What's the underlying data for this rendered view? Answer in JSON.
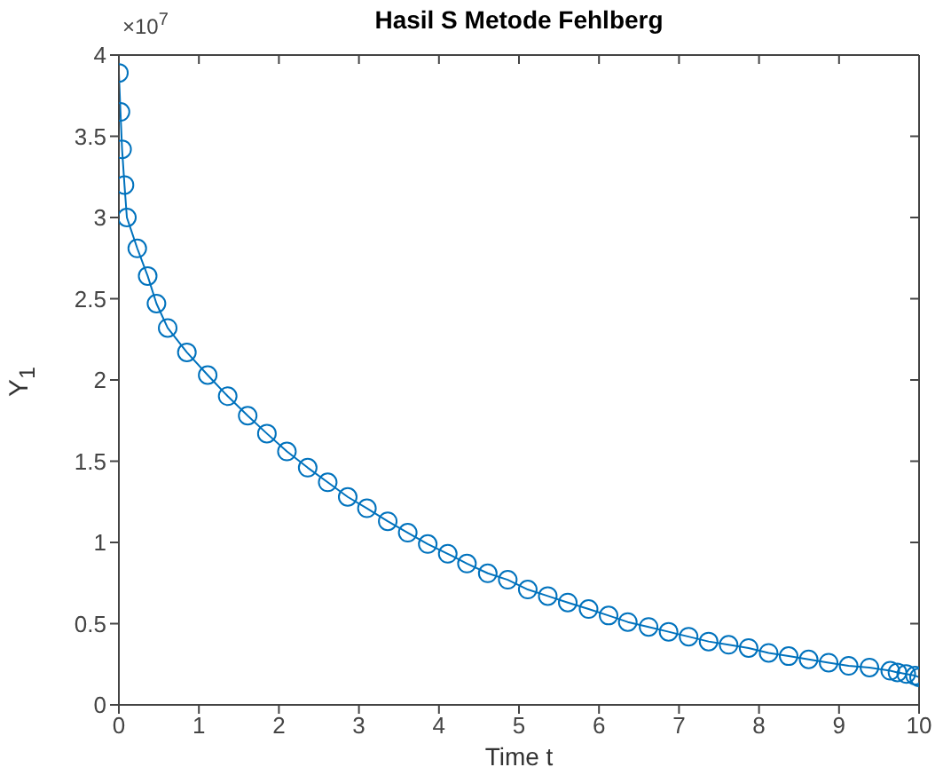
{
  "chart_data": {
    "type": "line",
    "title": "Hasil S Metode Fehlberg",
    "xlabel": "Time t",
    "ylabel": "Y$_{1}$",
    "annotations": [
      "×10$^{7}$"
    ],
    "series": [
      {
        "color": "#0072bd",
        "x": [
          0,
          0.02,
          0.04,
          0.07,
          0.1,
          0.23,
          0.36,
          0.47,
          0.61,
          0.85,
          1.11,
          1.36,
          1.61,
          1.85,
          2.1,
          2.36,
          2.61,
          2.86,
          3.1,
          3.36,
          3.61,
          3.86,
          4.11,
          4.35,
          4.61,
          4.86,
          5.11,
          5.36,
          5.61,
          5.87,
          6.12,
          6.36,
          6.62,
          6.87,
          7.12,
          7.37,
          7.62,
          7.87,
          8.12,
          8.37,
          8.62,
          8.87,
          9.12,
          9.38,
          9.64,
          9.73,
          9.84,
          9.95,
          10
        ],
        "values": [
          3.89,
          3.65,
          3.42,
          3.2,
          3.0,
          2.81,
          2.64,
          2.47,
          2.32,
          2.17,
          2.03,
          1.9,
          1.78,
          1.67,
          1.56,
          1.46,
          1.37,
          1.28,
          1.21,
          1.13,
          1.06,
          0.99,
          0.93,
          0.87,
          0.81,
          0.77,
          0.71,
          0.67,
          0.63,
          0.59,
          0.55,
          0.51,
          0.48,
          0.45,
          0.42,
          0.39,
          0.37,
          0.35,
          0.32,
          0.3,
          0.28,
          0.26,
          0.24,
          0.23,
          0.21,
          0.2,
          0.19,
          0.18,
          0.17
        ]
      }
    ],
    "xlim": [
      0,
      10
    ],
    "xticks": [
      0,
      1,
      2,
      3,
      4,
      5,
      6,
      7,
      8,
      9,
      10
    ],
    "ylim": [
      0,
      4
    ],
    "yticks": [
      0,
      0.5,
      1,
      1.5,
      2,
      2.5,
      3,
      3.5,
      4
    ],
    "marker": "circle",
    "line_style": "solid"
  }
}
